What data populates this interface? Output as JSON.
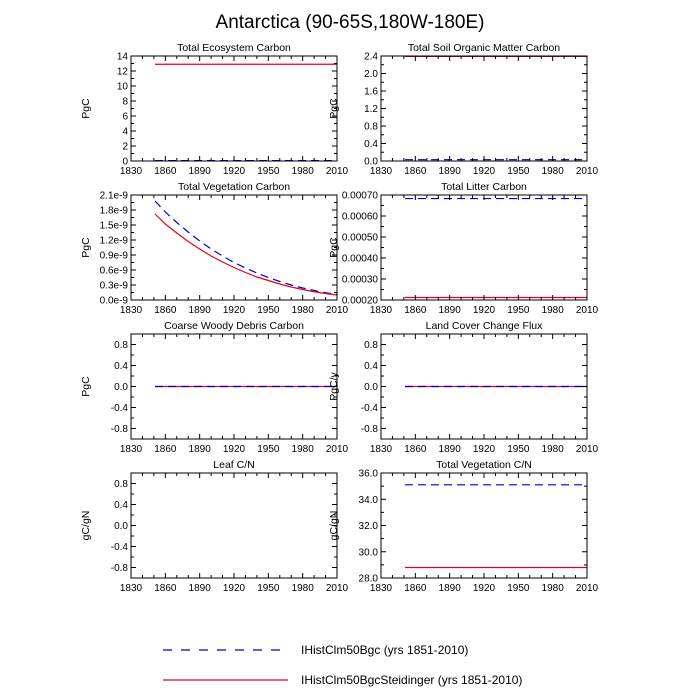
{
  "title": "Antarctica (90-65S,180W-180E)",
  "colors": {
    "bgc": "#0000cc",
    "steidinger": "#e8001c",
    "axis": "#000000"
  },
  "legend": {
    "placement": "bottom-center",
    "items": [
      {
        "series": "bgc",
        "label": "IHistClm50Bgc (yrs 1851-2010)",
        "style": "dashed"
      },
      {
        "series": "steidinger",
        "label": "IHistClm50BgcSteidinger (yrs 1851-2010)",
        "style": "solid"
      }
    ]
  },
  "chart_data": [
    {
      "type": "line",
      "title": "Total Ecosystem Carbon",
      "ylabel": "PgC",
      "xlim": [
        1830,
        2010
      ],
      "xticks": [
        1830,
        1860,
        1890,
        1920,
        1950,
        1980,
        2010
      ],
      "ylim": [
        0,
        14
      ],
      "yticks": [
        0,
        2,
        4,
        6,
        8,
        10,
        12,
        14
      ],
      "ytick_labels": [
        "0",
        "2",
        "4",
        "6",
        "8",
        "10",
        "12",
        "14"
      ],
      "series": [
        {
          "key": "bgc",
          "x": [
            1851,
            2010
          ],
          "y": [
            0.05,
            0.05
          ]
        },
        {
          "key": "steidinger",
          "x": [
            1851,
            2010
          ],
          "y": [
            12.9,
            12.9
          ]
        }
      ]
    },
    {
      "type": "line",
      "title": "Total Soil Organic Matter Carbon",
      "ylabel": "PgC",
      "xlim": [
        1830,
        2010
      ],
      "xticks": [
        1830,
        1860,
        1890,
        1920,
        1950,
        1980,
        2010
      ],
      "ylim": [
        0,
        2.4
      ],
      "yticks": [
        0,
        0.4,
        0.8,
        1.2,
        1.6,
        2.0,
        2.4
      ],
      "ytick_labels": [
        "0.0",
        "0.4",
        "0.8",
        "1.2",
        "1.6",
        "2.0",
        "2.4"
      ],
      "series": [
        {
          "key": "bgc",
          "x": [
            1851,
            2010
          ],
          "y": [
            0.03,
            0.03
          ]
        },
        {
          "key": "steidinger",
          "x": [
            1851,
            2010
          ],
          "y": [
            2.39,
            2.39
          ]
        }
      ]
    },
    {
      "type": "line",
      "title": "Total Vegetation Carbon",
      "ylabel": "PgC",
      "xlim": [
        1830,
        2010
      ],
      "xticks": [
        1830,
        1860,
        1890,
        1920,
        1950,
        1980,
        2010
      ],
      "ylim": [
        0,
        2.1e-09
      ],
      "yticks": [
        0,
        3e-10,
        6e-10,
        9e-10,
        1.2e-09,
        1.5e-09,
        1.8e-09,
        2.1e-09
      ],
      "ytick_labels": [
        "0.0e-9",
        "0.3e-9",
        "0.6e-9",
        "0.9e-9",
        "1.2e-9",
        "1.5e-9",
        "1.8e-9",
        "2.1e-9"
      ],
      "series": [
        {
          "key": "bgc",
          "x": [
            1851,
            1860,
            1870,
            1880,
            1890,
            1900,
            1910,
            1920,
            1930,
            1940,
            1950,
            1960,
            1970,
            1980,
            1990,
            2000,
            2010
          ],
          "y": [
            1.98e-09,
            1.76e-09,
            1.55e-09,
            1.36e-09,
            1.18e-09,
            1.02e-09,
            8.8e-10,
            7.5e-10,
            6.4e-10,
            5.4e-10,
            4.5e-10,
            3.7e-10,
            3e-10,
            2.4e-10,
            1.9e-10,
            1.45e-10,
            1.1e-10
          ]
        },
        {
          "key": "steidinger",
          "x": [
            1851,
            1860,
            1870,
            1880,
            1890,
            1900,
            1910,
            1920,
            1930,
            1940,
            1950,
            1960,
            1970,
            1980,
            1990,
            2000,
            2010
          ],
          "y": [
            1.72e-09,
            1.52e-09,
            1.34e-09,
            1.17e-09,
            1.02e-09,
            8.8e-10,
            7.6e-10,
            6.5e-10,
            5.5e-10,
            4.6e-10,
            3.9e-10,
            3.2e-10,
            2.6e-10,
            2.1e-10,
            1.65e-10,
            1.3e-10,
            1e-10
          ]
        }
      ]
    },
    {
      "type": "line",
      "title": "Total Litter Carbon",
      "ylabel": "PgC",
      "xlim": [
        1830,
        2010
      ],
      "xticks": [
        1830,
        1860,
        1890,
        1920,
        1950,
        1980,
        2010
      ],
      "ylim": [
        0.0002,
        0.0007
      ],
      "yticks": [
        0.0002,
        0.0003,
        0.0004,
        0.0005,
        0.0006,
        0.0007
      ],
      "ytick_labels": [
        "0.00020",
        "0.00030",
        "0.00040",
        "0.00050",
        "0.00060",
        "0.00070"
      ],
      "series": [
        {
          "key": "bgc",
          "x": [
            1851,
            2010
          ],
          "y": [
            0.000683,
            0.000683
          ]
        },
        {
          "key": "steidinger",
          "x": [
            1851,
            2010
          ],
          "y": [
            0.000212,
            0.000212
          ]
        }
      ]
    },
    {
      "type": "line",
      "title": "Coarse Woody Debris Carbon",
      "ylabel": "PgC",
      "xlim": [
        1830,
        2010
      ],
      "xticks": [
        1830,
        1860,
        1890,
        1920,
        1950,
        1980,
        2010
      ],
      "ylim": [
        -1,
        1
      ],
      "yticks": [
        -0.8,
        -0.4,
        0,
        0.4,
        0.8
      ],
      "ytick_labels": [
        "-0.8",
        "-0.4",
        "0.0",
        "0.4",
        "0.8"
      ],
      "series": [
        {
          "key": "steidinger",
          "x": [
            1851,
            2010
          ],
          "y": [
            0,
            0
          ]
        },
        {
          "key": "bgc",
          "x": [
            1851,
            2010
          ],
          "y": [
            0,
            0
          ]
        }
      ]
    },
    {
      "type": "line",
      "title": "Land Cover Change Flux",
      "ylabel": "PgC/y",
      "xlim": [
        1830,
        2010
      ],
      "xticks": [
        1830,
        1860,
        1890,
        1920,
        1950,
        1980,
        2010
      ],
      "ylim": [
        -1,
        1
      ],
      "yticks": [
        -0.8,
        -0.4,
        0,
        0.4,
        0.8
      ],
      "ytick_labels": [
        "-0.8",
        "-0.4",
        "0.0",
        "0.4",
        "0.8"
      ],
      "series": [
        {
          "key": "steidinger",
          "x": [
            1851,
            2010
          ],
          "y": [
            0,
            0
          ]
        },
        {
          "key": "bgc",
          "x": [
            1851,
            2010
          ],
          "y": [
            0,
            0
          ]
        }
      ]
    },
    {
      "type": "line",
      "title": "Leaf C/N",
      "ylabel": "gC/gN",
      "xlim": [
        1830,
        2010
      ],
      "xticks": [
        1830,
        1860,
        1890,
        1920,
        1950,
        1980,
        2010
      ],
      "ylim": [
        -1,
        1
      ],
      "yticks": [
        -0.8,
        -0.4,
        0,
        0.4,
        0.8
      ],
      "ytick_labels": [
        "-0.8",
        "-0.4",
        "0.0",
        "0.4",
        "0.8"
      ],
      "series": []
    },
    {
      "type": "line",
      "title": "Total Vegetation C/N",
      "ylabel": "gC/gN",
      "xlim": [
        1830,
        2010
      ],
      "xticks": [
        1830,
        1860,
        1890,
        1920,
        1950,
        1980,
        2010
      ],
      "ylim": [
        28,
        36
      ],
      "yticks": [
        28,
        30,
        32,
        34,
        36
      ],
      "ytick_labels": [
        "28.0",
        "30.0",
        "32.0",
        "34.0",
        "36.0"
      ],
      "series": [
        {
          "key": "bgc",
          "x": [
            1851,
            2010
          ],
          "y": [
            35.1,
            35.1
          ]
        },
        {
          "key": "steidinger",
          "x": [
            1851,
            2010
          ],
          "y": [
            28.8,
            28.8
          ]
        }
      ]
    }
  ]
}
